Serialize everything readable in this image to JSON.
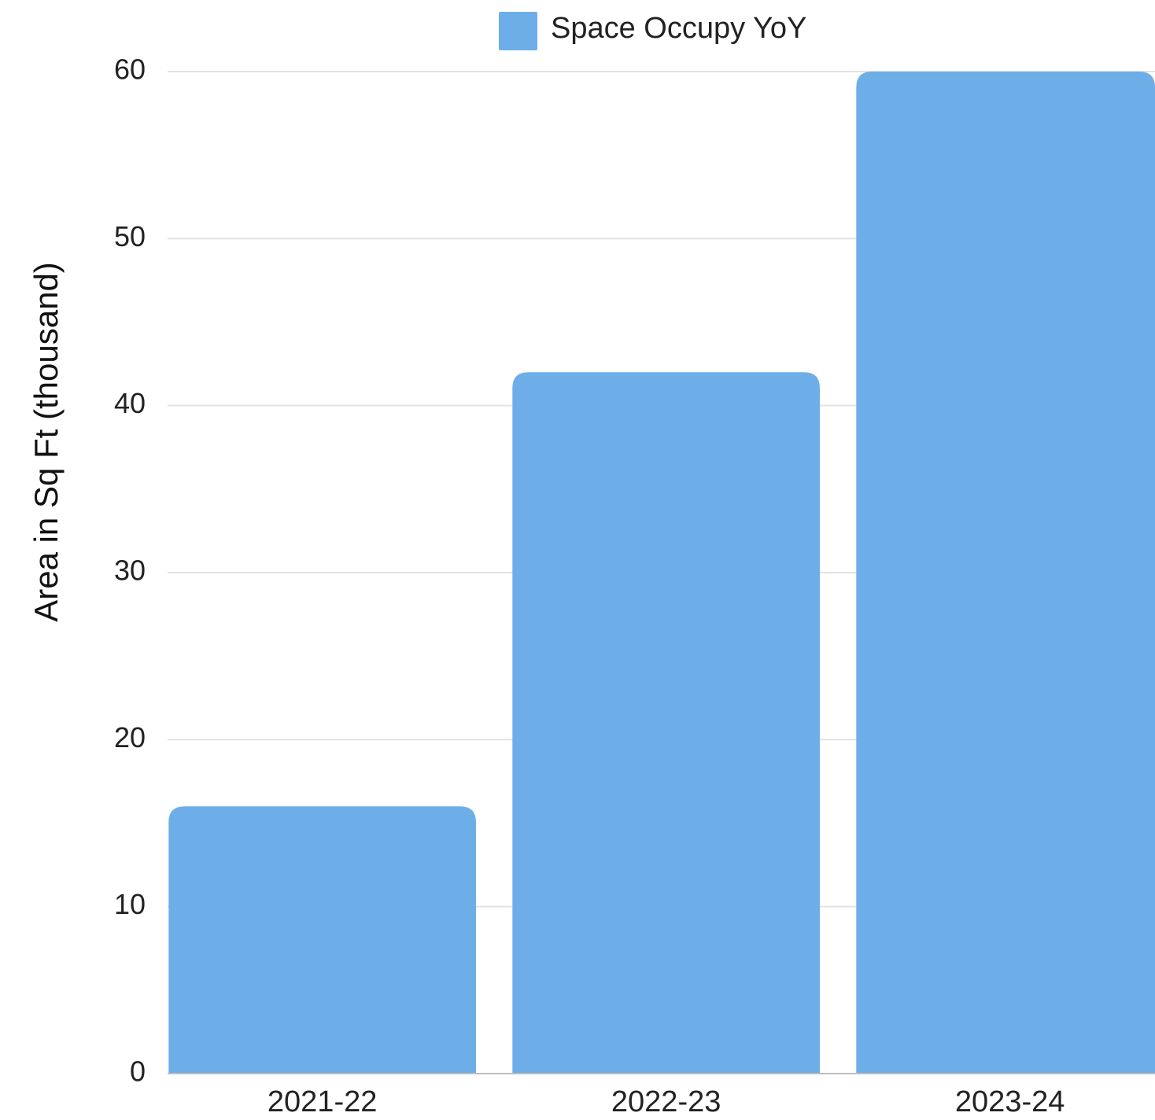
{
  "chart_data": {
    "type": "bar",
    "legend": "Space Occupy YoY",
    "y_axis_label": "Area in Sq Ft (thousand)",
    "categories": [
      "2021-22",
      "2022-23",
      "2023-24"
    ],
    "series": [
      {
        "name": "Space Occupy YoY",
        "color": "#6daee9",
        "values": [
          16,
          42,
          60
        ]
      }
    ],
    "ylim": [
      0,
      60
    ],
    "yticks": [
      0,
      10,
      20,
      30,
      40,
      50,
      60
    ],
    "grid": true
  }
}
